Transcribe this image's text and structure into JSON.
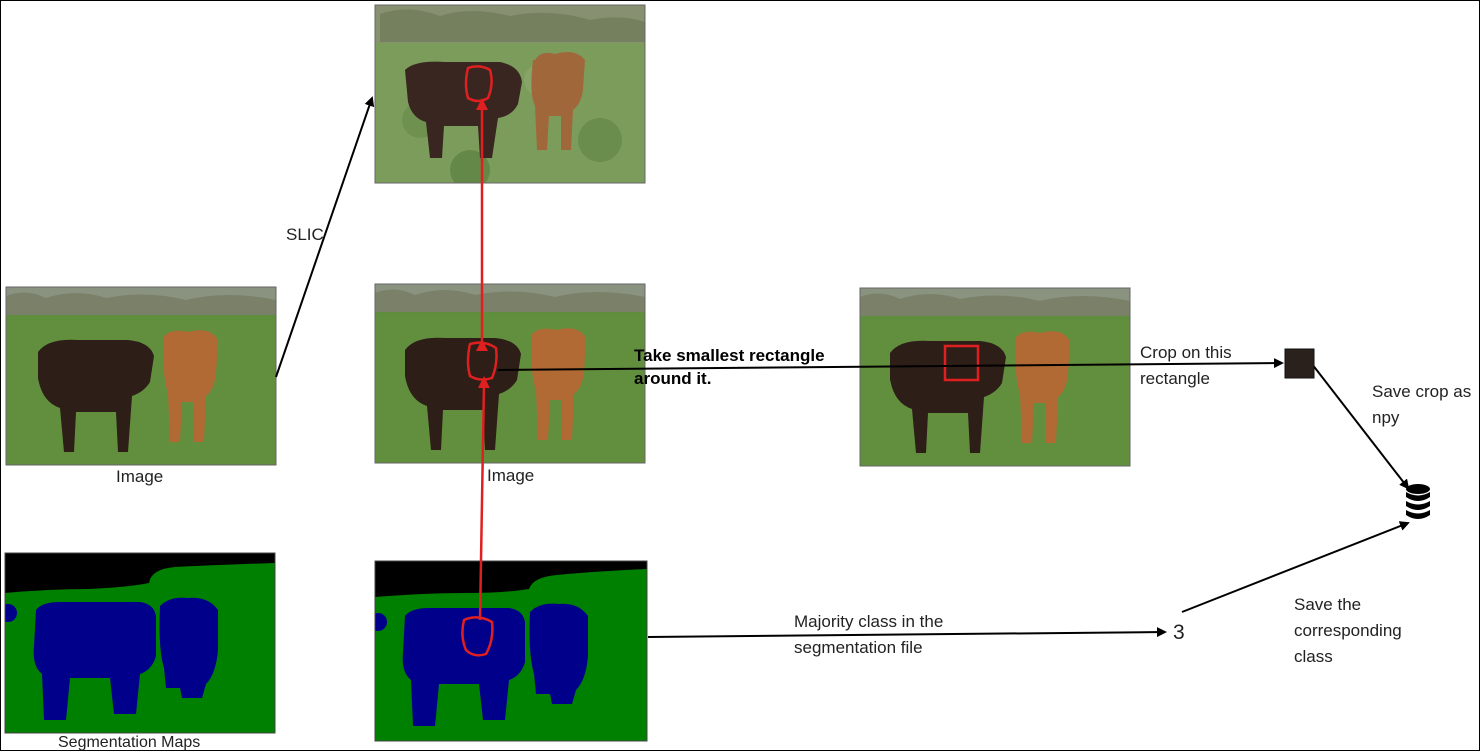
{
  "labels": {
    "slic": "SLIC",
    "image_left": "Image",
    "image_center": "Image",
    "segmentation_maps": "Segmentation Maps",
    "take_rect_line1": "Take smallest rectangle",
    "take_rect_line2": "around it.",
    "crop_line1": "Crop on this",
    "crop_line2": "rectangle",
    "save_crop_line1": "Save crop as",
    "save_crop_line2": "npy",
    "majority_line1": "Majority class in the",
    "majority_line2": "segmentation file",
    "class_value": "3",
    "save_class_line1": "Save the",
    "save_class_line2": "corresponding",
    "save_class_line3": "class"
  },
  "colors": {
    "grass": "#5d8a3c",
    "sky": "#7f8a7a",
    "cow_dark": "#2e1f1a",
    "cow_light": "#b26a34",
    "seg_background": "#000000",
    "seg_grass": "#008000",
    "seg_cow": "#00008b",
    "highlight": "#e02020",
    "arrow": "#000000"
  },
  "icons": {
    "database": "database-icon"
  }
}
